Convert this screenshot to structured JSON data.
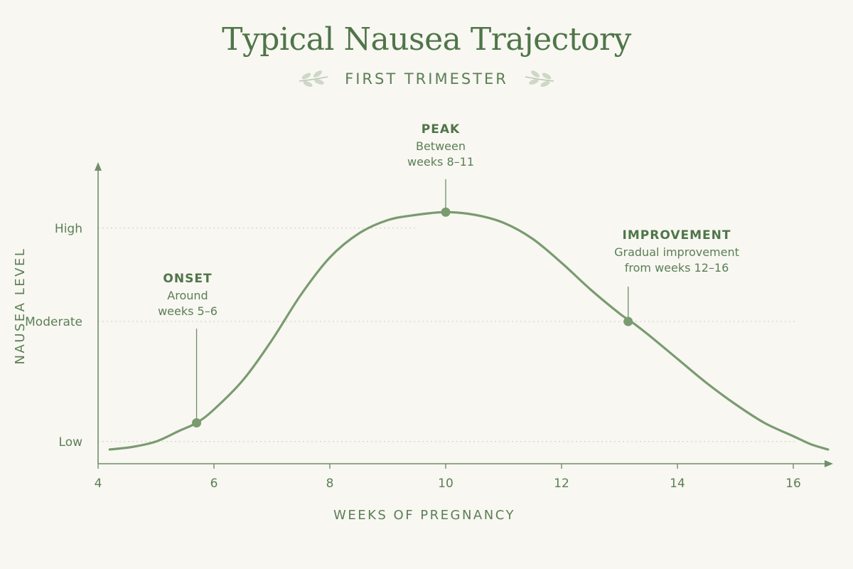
{
  "chart_data": {
    "type": "line",
    "title": "Typical Nausea Trajectory",
    "subtitle": "FIRST TRIMESTER",
    "xlabel": "WEEKS OF PREGNANCY",
    "ylabel": "NAUSEA LEVEL",
    "xlim": [
      4,
      16.6
    ],
    "ylim": [
      0,
      1.05
    ],
    "x_ticks": [
      4,
      6,
      8,
      10,
      12,
      14,
      16
    ],
    "y_ticks": [
      {
        "label": "Low",
        "value": 0.03
      },
      {
        "label": "Moderate",
        "value": 0.48
      },
      {
        "label": "High",
        "value": 0.83
      }
    ],
    "grid": "y-dotted",
    "colors": {
      "line": "#7a9b70",
      "marker": "#7a9b70",
      "text": "#5b7f55",
      "axis": "#6f8f68"
    },
    "series": [
      {
        "x": [
          4.2,
          4.6,
          5.0,
          5.4,
          5.7,
          6.0,
          6.5,
          7.0,
          7.5,
          8.0,
          8.5,
          9.0,
          9.5,
          10.0,
          10.5,
          11.0,
          11.5,
          12.0,
          12.5,
          13.0,
          13.2,
          13.5,
          14.0,
          14.5,
          15.0,
          15.5,
          16.0,
          16.3,
          16.6
        ],
        "y": [
          0.0,
          0.01,
          0.03,
          0.07,
          0.1,
          0.15,
          0.26,
          0.41,
          0.58,
          0.72,
          0.81,
          0.86,
          0.88,
          0.89,
          0.88,
          0.85,
          0.79,
          0.7,
          0.6,
          0.51,
          0.48,
          0.43,
          0.34,
          0.25,
          0.17,
          0.1,
          0.05,
          0.02,
          0.0
        ]
      }
    ],
    "annotations": [
      {
        "heading": "ONSET",
        "lines": [
          "Around",
          "weeks 5–6"
        ],
        "x": 5.7,
        "y": 0.1
      },
      {
        "heading": "PEAK",
        "lines": [
          "Between",
          "weeks 8–11"
        ],
        "x": 10.0,
        "y": 0.89
      },
      {
        "heading": "IMPROVEMENT",
        "lines": [
          "Gradual improvement",
          "from weeks 12–16"
        ],
        "x": 13.15,
        "y": 0.48
      }
    ]
  }
}
